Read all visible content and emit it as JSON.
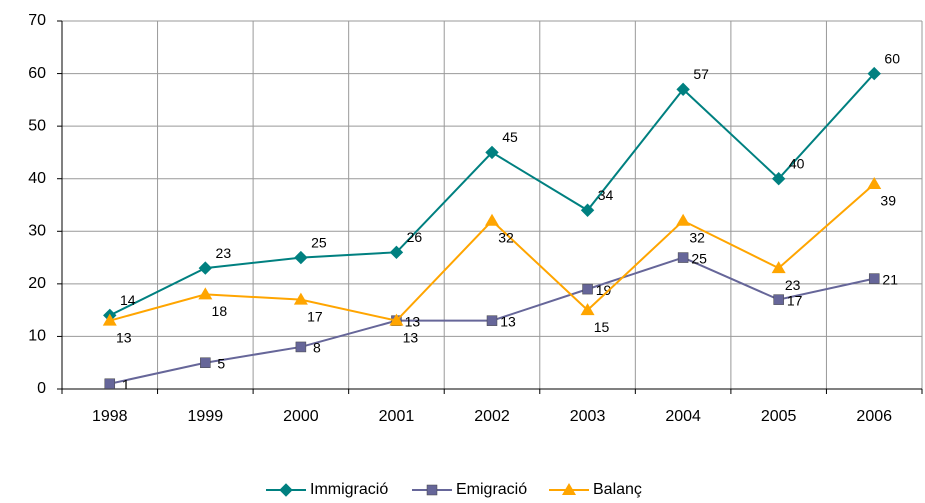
{
  "chart_data": {
    "type": "line",
    "categories": [
      "1998",
      "1999",
      "2000",
      "2001",
      "2002",
      "2003",
      "2004",
      "2005",
      "2006"
    ],
    "series": [
      {
        "name": "Immigració",
        "color": "#008080",
        "marker": "diamond",
        "values": [
          14,
          23,
          25,
          26,
          45,
          34,
          57,
          40,
          60
        ]
      },
      {
        "name": "Emigració",
        "color": "#666699",
        "marker": "square",
        "values": [
          1,
          5,
          8,
          13,
          13,
          19,
          25,
          17,
          21
        ]
      },
      {
        "name": "Balanç",
        "color": "#ffa500",
        "marker": "triangle",
        "values": [
          13,
          18,
          17,
          13,
          32,
          15,
          32,
          23,
          39
        ]
      }
    ],
    "ylim": [
      0,
      70
    ],
    "yticks": [
      0,
      10,
      20,
      30,
      40,
      50,
      60,
      70
    ],
    "grid": true,
    "legend": "bottom"
  }
}
